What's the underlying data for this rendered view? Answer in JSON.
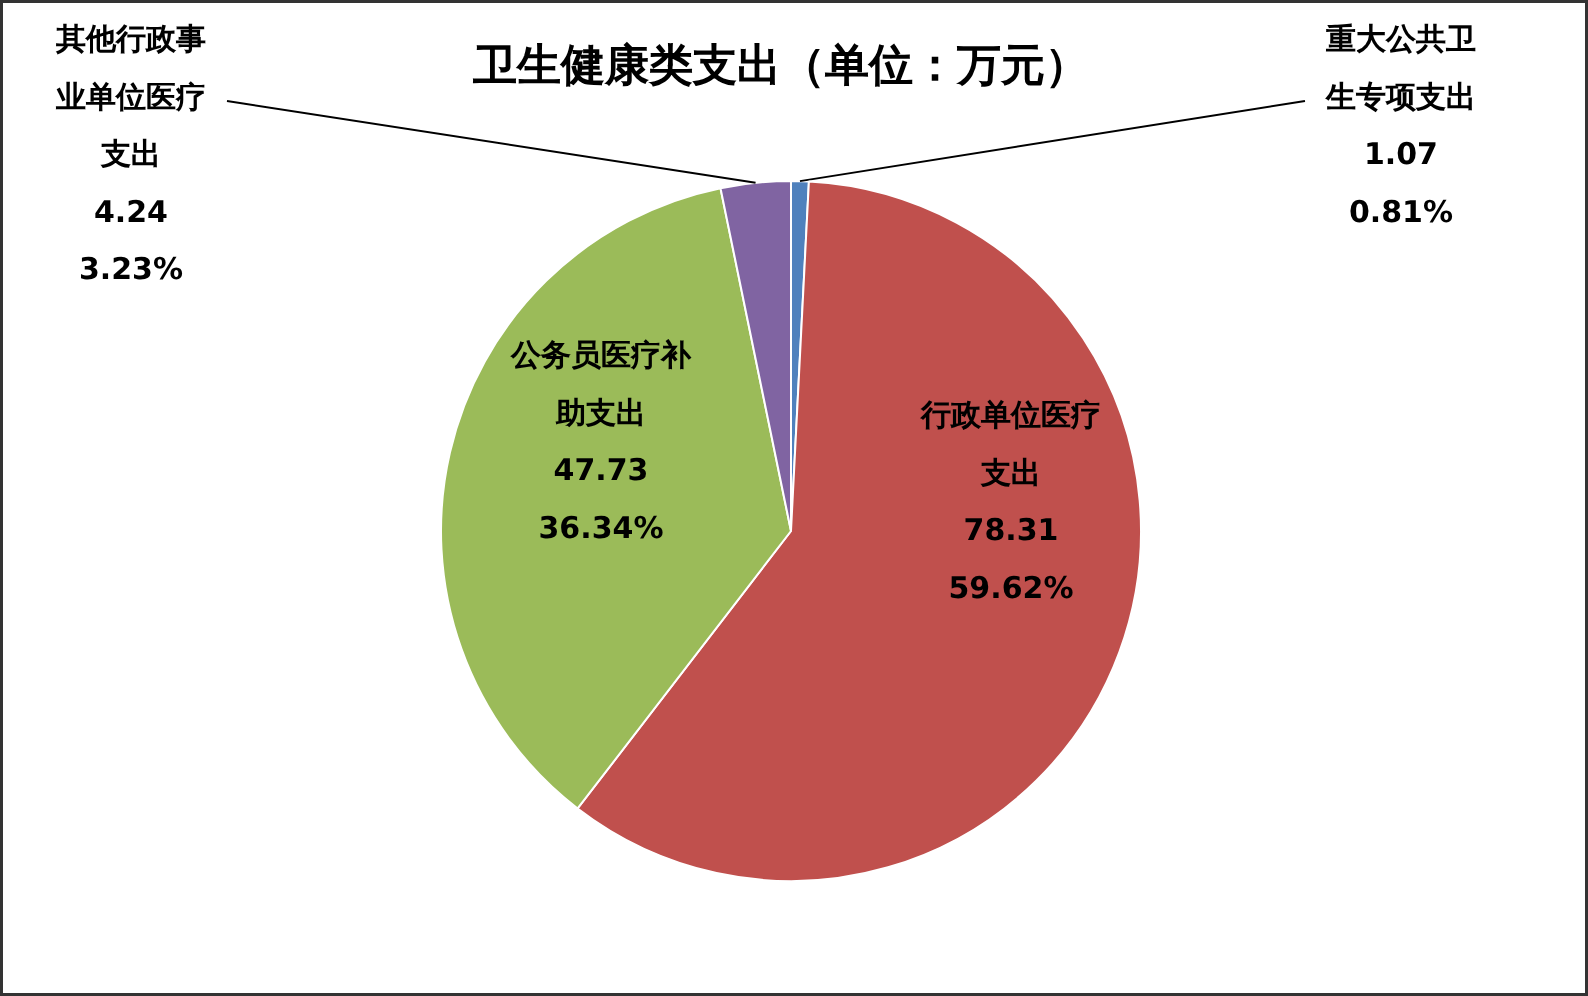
{
  "chart_data": {
    "type": "pie",
    "title": "卫生健康类支出（单位：万元）",
    "categories": [
      "重大公共卫生专项支出",
      "行政单位医疗支出",
      "公务员医疗补助支出",
      "其他行政事业单位医疗支出"
    ],
    "values": [
      1.07,
      78.31,
      47.73,
      4.24
    ],
    "colors": [
      "#4f81bd",
      "#c0504d",
      "#9bbb59",
      "#8064a2"
    ],
    "value_labels": [
      "1.07\n0.81%",
      "78.31\n59.62%",
      "47.73\n36.34%",
      "4.24\n3.23%"
    ],
    "legend": false
  }
}
